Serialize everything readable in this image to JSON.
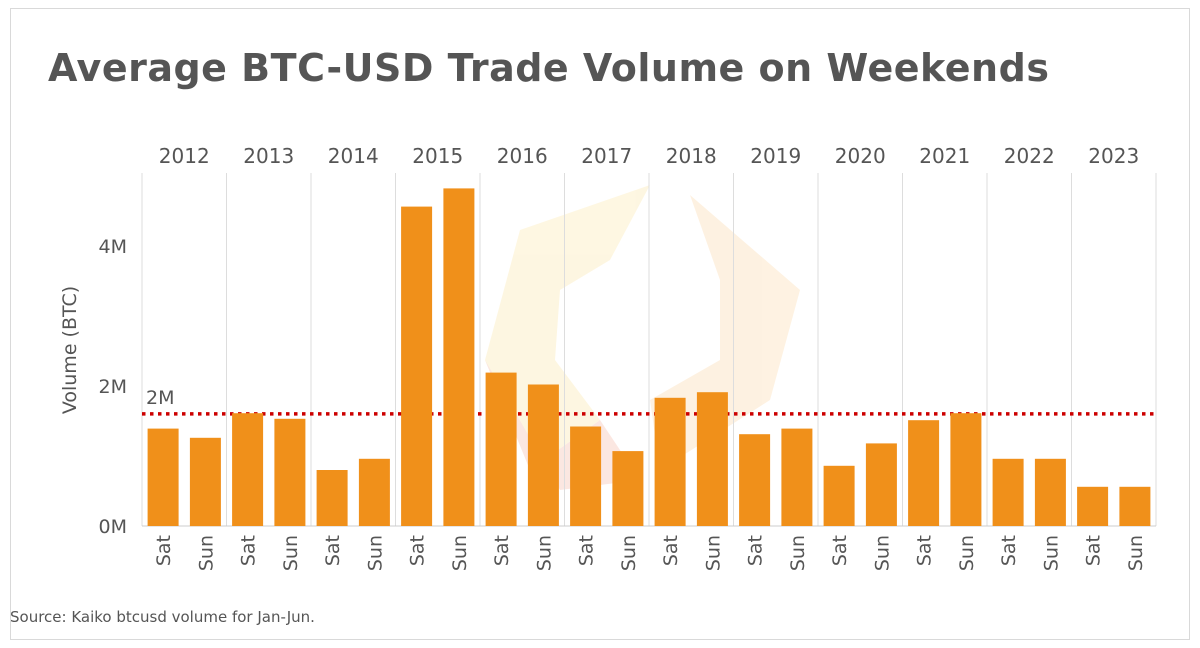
{
  "chart_data": {
    "type": "bar",
    "title": "Average BTC-USD Trade Volume on Weekends",
    "ylabel": "Volume (BTC)",
    "xlabel": "",
    "years": [
      "2012",
      "2013",
      "2014",
      "2015",
      "2016",
      "2017",
      "2018",
      "2019",
      "2020",
      "2021",
      "2022",
      "2023"
    ],
    "days": [
      "Sat",
      "Sun"
    ],
    "values": [
      [
        1.39,
        1.26
      ],
      [
        1.61,
        1.53
      ],
      [
        0.8,
        0.96
      ],
      [
        4.56,
        4.82
      ],
      [
        2.19,
        2.02
      ],
      [
        1.42,
        1.07
      ],
      [
        1.83,
        1.91
      ],
      [
        1.31,
        1.39
      ],
      [
        0.86,
        1.18
      ],
      [
        1.51,
        1.61
      ],
      [
        0.96,
        0.96
      ],
      [
        0.56,
        0.56
      ]
    ],
    "unit": "M",
    "ylim": [
      0,
      5.04
    ],
    "yticks": [
      {
        "value": 0,
        "label": "0M"
      },
      {
        "value": 2,
        "label": "2M"
      },
      {
        "value": 4,
        "label": "4M"
      }
    ],
    "reference_line": {
      "value": 1.6,
      "label": "2M",
      "color": "#cc0000",
      "style": "dotted"
    },
    "bar_color": "#f0901a",
    "grid": "vertical separators between years",
    "source": "Source: Kaiko btcusd volume for Jan-Jun."
  }
}
